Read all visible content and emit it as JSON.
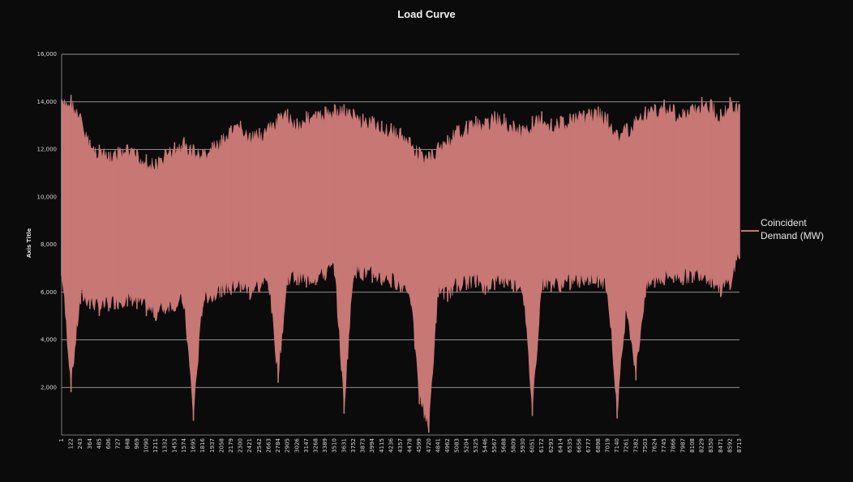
{
  "chart_data": {
    "type": "area",
    "title": "Load Curve",
    "ylabel": "Axis Title",
    "xlabel": "",
    "ylim": [
      0,
      16000
    ],
    "yticks": [
      "",
      "2,000",
      "4,000",
      "6,000",
      "8,000",
      "10,000",
      "12,000",
      "14,000",
      "16,000"
    ],
    "ytick_values": [
      0,
      2000,
      4000,
      6000,
      8000,
      10000,
      12000,
      14000,
      16000
    ],
    "grid": true,
    "legend_position": "right",
    "series": [
      {
        "name": "Coincident Demand (MW)",
        "color": "#c77774",
        "x": [
          1,
          122,
          243,
          364,
          485,
          606,
          727,
          848,
          969,
          1090,
          1211,
          1332,
          1453,
          1574,
          1695,
          1816,
          1937,
          2058,
          2179,
          2300,
          2421,
          2542,
          2663,
          2784,
          2905,
          3026,
          3147,
          3268,
          3389,
          3510,
          3631,
          3752,
          3873,
          3994,
          4115,
          4236,
          4357,
          4478,
          4599,
          4720,
          4841,
          4962,
          5083,
          5204,
          5325,
          5446,
          5567,
          5688,
          5809,
          5930,
          6051,
          6172,
          6293,
          6414,
          6535,
          6656,
          6777,
          6898,
          7019,
          7140,
          7261,
          7382,
          7503,
          7624,
          7745,
          7866,
          7987,
          8108,
          8229,
          8350,
          8471,
          8592,
          8713
        ],
        "max": [
          14100,
          14300,
          13500,
          12400,
          12200,
          11900,
          12100,
          12200,
          12000,
          11800,
          11600,
          12000,
          12300,
          12500,
          12200,
          12000,
          12300,
          12600,
          13000,
          13200,
          12700,
          12900,
          13100,
          13500,
          13700,
          13300,
          13600,
          13600,
          13800,
          13900,
          13900,
          13700,
          13500,
          13400,
          13200,
          13100,
          12900,
          12500,
          12100,
          11900,
          12300,
          12600,
          13000,
          13200,
          13400,
          13300,
          13600,
          13500,
          13200,
          13000,
          13400,
          13600,
          13300,
          13400,
          13500,
          13600,
          13700,
          13800,
          13500,
          12800,
          13100,
          13400,
          13800,
          13900,
          14100,
          13900,
          13700,
          13900,
          14200,
          14100,
          13700,
          14200,
          13900
        ],
        "min": [
          6700,
          1800,
          5500,
          5300,
          5000,
          5200,
          5300,
          5400,
          5300,
          5000,
          4800,
          5100,
          5200,
          5300,
          600,
          5400,
          5600,
          5800,
          5900,
          6000,
          5700,
          6000,
          6100,
          2200,
          6300,
          6300,
          6200,
          6300,
          6500,
          6700,
          900,
          6600,
          6500,
          6400,
          6300,
          6200,
          6000,
          5800,
          1300,
          100,
          5800,
          5600,
          6000,
          6100,
          6200,
          5900,
          6100,
          6200,
          6000,
          5900,
          800,
          6100,
          6000,
          6000,
          6100,
          6200,
          6300,
          6200,
          5900,
          700,
          5200,
          2300,
          5800,
          6200,
          6300,
          6400,
          6300,
          6400,
          6500,
          6200,
          5800,
          6100,
          7400
        ]
      }
    ],
    "xtick_labels": [
      "1",
      "122",
      "243",
      "364",
      "485",
      "606",
      "727",
      "848",
      "969",
      "1090",
      "1211",
      "1332",
      "1453",
      "1574",
      "1695",
      "1816",
      "1937",
      "2058",
      "2179",
      "2300",
      "2421",
      "2542",
      "2663",
      "2784",
      "2905",
      "3026",
      "3147",
      "3268",
      "3389",
      "3510",
      "3631",
      "3752",
      "3873",
      "3994",
      "4115",
      "4236",
      "4357",
      "4478",
      "4599",
      "4720",
      "4841",
      "4962",
      "5083",
      "5204",
      "5325",
      "5446",
      "5567",
      "5688",
      "5809",
      "5930",
      "6051",
      "6172",
      "6293",
      "6414",
      "6535",
      "6656",
      "6777",
      "6898",
      "7019",
      "7140",
      "7261",
      "7382",
      "7503",
      "7624",
      "7745",
      "7866",
      "7987",
      "8108",
      "8229",
      "8350",
      "8471",
      "8592",
      "8713"
    ]
  },
  "colors": {
    "background": "#0b0b0b",
    "grid": "#bdbdbd",
    "series": "#c77774"
  }
}
